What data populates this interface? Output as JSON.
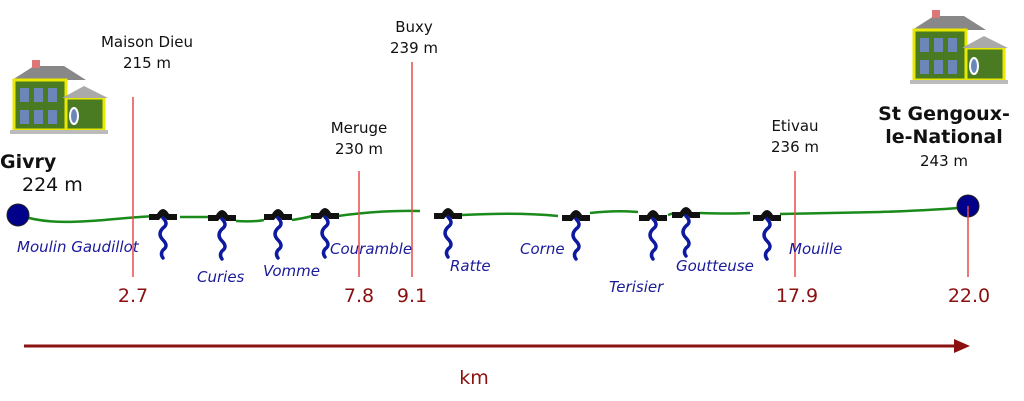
{
  "start": {
    "name": "Givry",
    "alt": "224 m"
  },
  "end": {
    "name_line1": "St Gengoux-",
    "name_line2": "le-National",
    "alt": "243 m"
  },
  "waypoints": [
    {
      "name": "Maison Dieu",
      "alt": "215 m",
      "km": "2.7"
    },
    {
      "name": "Meruge",
      "alt": "230 m",
      "km": "7.8"
    },
    {
      "name": "Buxy",
      "alt": "239 m",
      "km": "9.1"
    },
    {
      "name": "Etivau",
      "alt": "236 m",
      "km": "17.9"
    }
  ],
  "end_km": "22.0",
  "rivers": [
    "Moulin Gaudillot",
    "Curies",
    "Vomme",
    "Couramble",
    "Ratte",
    "Corne",
    "Terisier",
    "Goutteuse",
    "Mouille"
  ],
  "axis_label": "km",
  "colors": {
    "route": "#1a8a1a",
    "marker": "#e84a4a",
    "km": "#8b1010",
    "river": "#1a1a9a",
    "endpoint": "#00008b"
  }
}
